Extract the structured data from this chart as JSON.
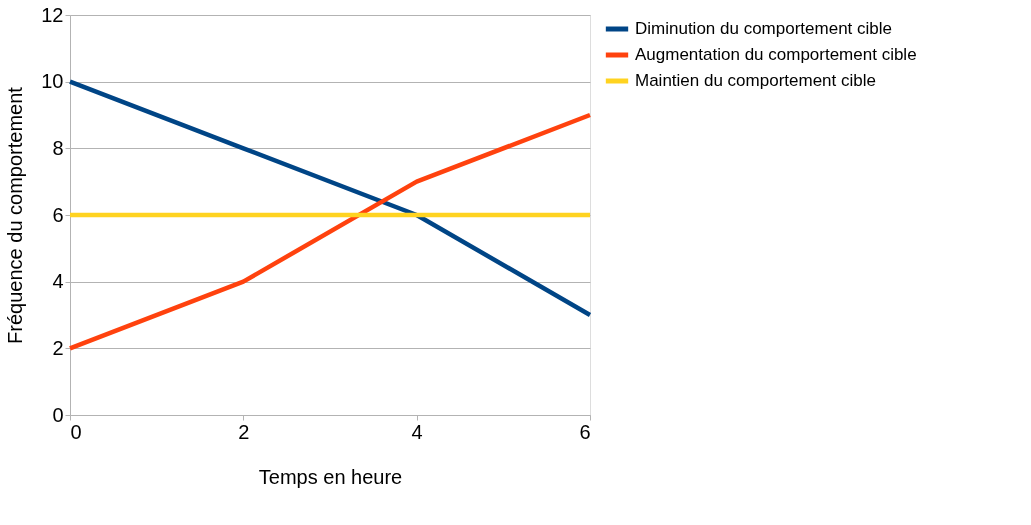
{
  "chart_data": {
    "type": "line",
    "xlabel": "Temps en heure",
    "ylabel": "Fréquence du comportement",
    "x": [
      0,
      2,
      4,
      6
    ],
    "series": [
      {
        "name": "Diminution du comportement cible",
        "color": "#004586",
        "values": [
          10,
          8,
          6,
          3
        ]
      },
      {
        "name": "Augmentation du comportement cible",
        "color": "#ff420e",
        "values": [
          2,
          4,
          7,
          9
        ]
      },
      {
        "name": "Maintien du comportement cible",
        "color": "#ffd320",
        "values": [
          6,
          6,
          6,
          6
        ]
      }
    ],
    "xlim": [
      0,
      6
    ],
    "xticks": [
      0,
      2,
      4,
      6
    ],
    "ylim": [
      0,
      12
    ],
    "yticks": [
      0,
      2,
      4,
      6,
      8,
      10,
      12
    ],
    "grid": "y",
    "legend": "right",
    "marker": "none",
    "line_style": "solid"
  }
}
